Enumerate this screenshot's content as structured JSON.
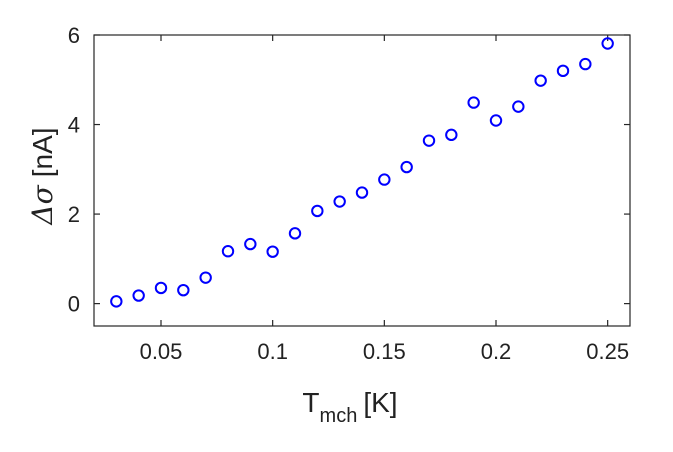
{
  "chart_data": {
    "type": "scatter",
    "title": "",
    "xlabel": "T",
    "xlabel_sub": "mch",
    "xlabel_unit": "[K]",
    "ylabel_prefix": "Δσ",
    "ylabel_unit": "[nA]",
    "xlim": [
      0.02,
      0.26
    ],
    "ylim": [
      -0.5,
      6
    ],
    "xticks": [
      0.05,
      0.1,
      0.15,
      0.2,
      0.25
    ],
    "xtick_labels": [
      "0.05",
      "0.1",
      "0.15",
      "0.2",
      "0.25"
    ],
    "yticks": [
      0,
      2,
      4,
      6
    ],
    "ytick_labels": [
      "0",
      "2",
      "4",
      "6"
    ],
    "grid": false,
    "marker": "circle-open",
    "marker_color": "#0000ff",
    "series": [
      {
        "x": [
          0.03,
          0.04,
          0.05,
          0.06,
          0.07,
          0.08,
          0.09,
          0.1,
          0.11,
          0.12,
          0.13,
          0.14,
          0.15,
          0.16,
          0.17,
          0.18,
          0.19,
          0.2,
          0.21,
          0.22,
          0.23,
          0.24,
          0.25
        ],
        "y": [
          0.05,
          0.18,
          0.35,
          0.3,
          0.58,
          1.17,
          1.33,
          1.16,
          1.57,
          2.07,
          2.28,
          2.48,
          2.77,
          3.05,
          3.64,
          3.77,
          4.49,
          4.09,
          4.4,
          4.98,
          5.2,
          5.35,
          5.81
        ]
      }
    ]
  }
}
